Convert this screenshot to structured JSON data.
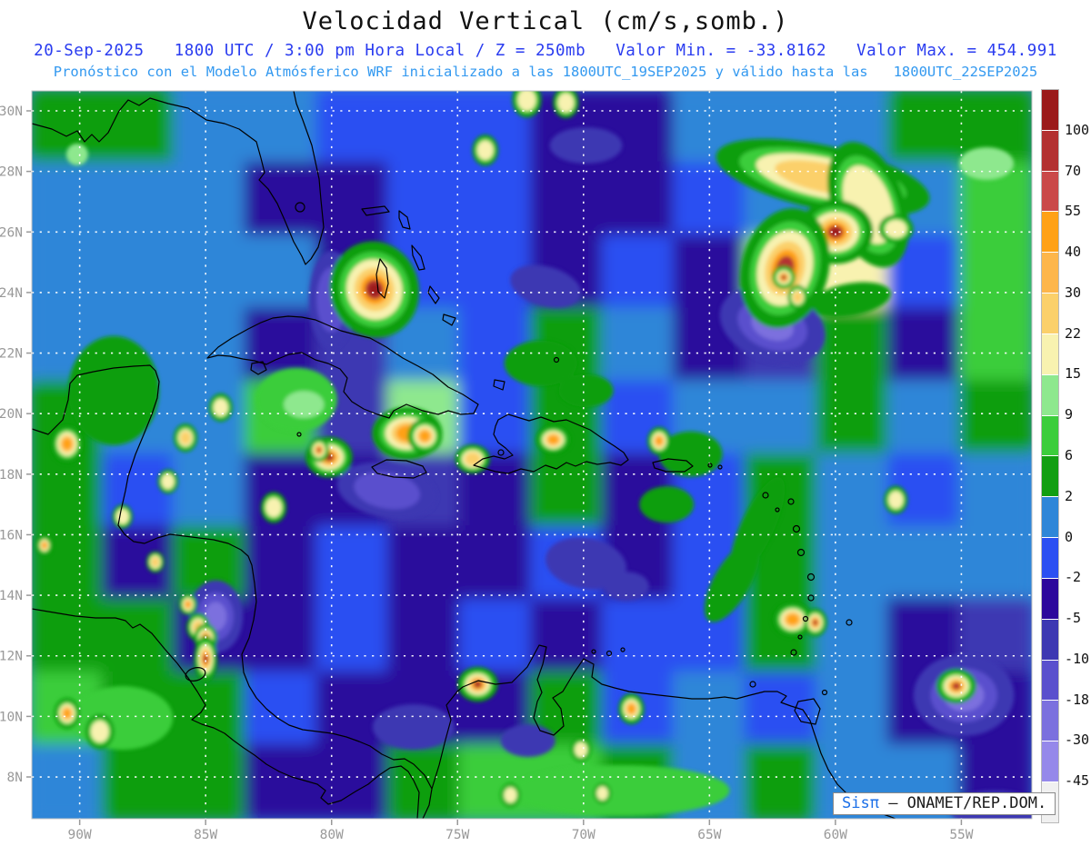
{
  "header": {
    "title": "Velocidad Vertical (cm/s,somb.)",
    "line2": "20-Sep-2025   1800 UTC / 3:00 pm Hora Local / Z = 250mb   Valor Min. = -33.8162   Valor Max. = 454.991",
    "line3": "Pronóstico con el Modelo Atmósferico WRF inicializado a las 1800UTC_19SEP2025 y válido hasta las   1800UTC_22SEP2025"
  },
  "watermark": {
    "brand": "Sisπ",
    "separator": " – ",
    "org": "ONAMET/REP.DOM."
  },
  "axes": {
    "lat_labels": [
      "30N",
      "28N",
      "26N",
      "24N",
      "22N",
      "20N",
      "18N",
      "16N",
      "14N",
      "12N",
      "10N",
      "8N"
    ],
    "lon_labels": [
      "90W",
      "85W",
      "80W",
      "75W",
      "70W",
      "65W",
      "60W",
      "55W"
    ],
    "label_color": "#999999"
  },
  "colorbar": {
    "labels": [
      "100",
      "70",
      "55",
      "40",
      "30",
      "22",
      "15",
      "9",
      "6",
      "2",
      "0",
      "-2",
      "-5",
      "-10",
      "-18",
      "-30",
      "-45"
    ],
    "colors_top_to_bottom": [
      "#9b1a1a",
      "#b33030",
      "#ca4949",
      "#ffa116",
      "#fdb64b",
      "#fbd06a",
      "#f8f2b0",
      "#8ee88e",
      "#3bcd3b",
      "#119e11",
      "#2e86d8",
      "#2b4ff2",
      "#2c079c",
      "#3d38b2",
      "#5a50cd",
      "#7b70de",
      "#9588ea",
      "#f0f0f0"
    ]
  },
  "chart_data": {
    "type": "heatmap",
    "title": "Velocidad Vertical (cm/s,somb.)",
    "units": "cm/s",
    "level": "250mb",
    "valid_time": "20-Sep-2025 1800 UTC / 3:00 pm Hora Local",
    "model": "WRF",
    "initialized": "1800UTC_19SEP2025",
    "valid_until": "1800UTC_22SEP2025",
    "value_min": -33.8162,
    "value_max": 454.991,
    "lon_range": [
      -91.9,
      -52.2
    ],
    "lat_range": [
      6.62,
      30.66
    ],
    "lat_ticks": [
      30,
      28,
      26,
      24,
      22,
      20,
      18,
      16,
      14,
      12,
      10,
      8
    ],
    "lon_ticks": [
      -90,
      -85,
      -80,
      -75,
      -70,
      -65,
      -60,
      -55
    ],
    "levels": [
      -45,
      -30,
      -18,
      -10,
      -5,
      -2,
      0,
      2,
      6,
      9,
      15,
      22,
      30,
      40,
      55,
      70,
      100
    ],
    "level_colors_low_to_high": [
      "#f0f0f0",
      "#9588ea",
      "#7b70de",
      "#5a50cd",
      "#3d38b2",
      "#2c079c",
      "#2b4ff2",
      "#2e86d8",
      "#119e11",
      "#3bcd3b",
      "#8ee88e",
      "#f8f2b0",
      "#fbd06a",
      "#fdb64b",
      "#ffa116",
      "#ca4949",
      "#b33030",
      "#9b1a1a"
    ],
    "grid_note": "coarse 14x10 field of dominant band values (cm/s), west->east, north->south",
    "grid": {
      "cols": 14,
      "rows": 10,
      "values": [
        [
          4,
          4,
          1,
          1,
          -1,
          -1,
          -1,
          -4,
          -4,
          1,
          1,
          1,
          4,
          4
        ],
        [
          1,
          1,
          1,
          -4,
          -4,
          -1,
          -1,
          -4,
          -4,
          -1,
          1,
          -1,
          1,
          7
        ],
        [
          1,
          1,
          1,
          1,
          -4,
          -1,
          -1,
          -4,
          -1,
          -4,
          12,
          18,
          -1,
          7
        ],
        [
          1,
          1,
          1,
          -4,
          -8,
          1,
          -1,
          4,
          1,
          -4,
          -8,
          4,
          -4,
          7
        ],
        [
          4,
          1,
          1,
          7,
          -8,
          12,
          -1,
          4,
          -1,
          1,
          1,
          4,
          1,
          4
        ],
        [
          4,
          -1,
          1,
          -4,
          -4,
          -8,
          -4,
          4,
          -4,
          -1,
          4,
          1,
          -1,
          1
        ],
        [
          4,
          -4,
          4,
          -4,
          -1,
          -4,
          -4,
          -1,
          -4,
          -1,
          4,
          1,
          1,
          1
        ],
        [
          4,
          4,
          -4,
          -4,
          -1,
          -4,
          -1,
          -4,
          -1,
          -1,
          4,
          1,
          -4,
          -8
        ],
        [
          7,
          4,
          4,
          -1,
          -4,
          -4,
          -4,
          4,
          -1,
          1,
          -1,
          1,
          -4,
          -4
        ],
        [
          1,
          4,
          4,
          -4,
          -4,
          4,
          7,
          7,
          4,
          1,
          4,
          1,
          1,
          -4
        ]
      ]
    },
    "features_note": "notable maxima/minima blobs: [lon, lat, rx_deg, ry_deg, peak_value_cms, rotation_deg]",
    "features": [
      [
        -78.3,
        24.1,
        1.1,
        1.0,
        120,
        -15
      ],
      [
        -60.5,
        27.8,
        2.7,
        0.66,
        26,
        12
      ],
      [
        -58.7,
        26.9,
        0.9,
        1.35,
        18,
        -20
      ],
      [
        -60.0,
        26.0,
        0.94,
        0.66,
        120,
        0
      ],
      [
        -62.0,
        24.8,
        1.08,
        1.26,
        80,
        15
      ],
      [
        -62.05,
        24.5,
        0.29,
        0.24,
        120,
        0
      ],
      [
        -57.6,
        26.1,
        0.43,
        0.3,
        18,
        0
      ],
      [
        -61.5,
        23.85,
        0.25,
        0.25,
        26,
        0
      ],
      [
        -77.0,
        19.35,
        0.87,
        0.54,
        45,
        0
      ],
      [
        -76.3,
        19.26,
        0.43,
        0.36,
        45,
        0
      ],
      [
        -80.1,
        18.56,
        0.58,
        0.42,
        120,
        0
      ],
      [
        -80.5,
        18.8,
        0.25,
        0.25,
        80,
        0
      ],
      [
        -71.2,
        19.14,
        0.43,
        0.3,
        45,
        0
      ],
      [
        -67.0,
        19.1,
        0.29,
        0.29,
        45,
        0
      ],
      [
        -74.4,
        18.5,
        0.43,
        0.3,
        26,
        0
      ],
      [
        -90.5,
        19.0,
        0.4,
        0.4,
        45,
        0
      ],
      [
        -85.8,
        19.2,
        0.29,
        0.29,
        26,
        0
      ],
      [
        -86.5,
        17.76,
        0.25,
        0.25,
        18,
        0
      ],
      [
        -84.4,
        20.2,
        0.29,
        0.29,
        18,
        0
      ],
      [
        -82.3,
        16.9,
        0.32,
        0.32,
        18,
        0
      ],
      [
        -88.3,
        16.6,
        0.25,
        0.25,
        18,
        0
      ],
      [
        -85.7,
        13.7,
        0.22,
        0.22,
        45,
        0
      ],
      [
        -85.3,
        12.95,
        0.29,
        0.29,
        26,
        0
      ],
      [
        -85.0,
        12.6,
        0.29,
        0.29,
        120,
        0
      ],
      [
        -85.0,
        11.9,
        0.29,
        0.48,
        120,
        0
      ],
      [
        -87.0,
        15.1,
        0.22,
        0.22,
        26,
        0
      ],
      [
        -91.4,
        15.65,
        0.2,
        0.2,
        45,
        0
      ],
      [
        -90.5,
        10.1,
        0.32,
        0.32,
        45,
        0
      ],
      [
        -74.2,
        11.06,
        0.5,
        0.36,
        120,
        0
      ],
      [
        -68.1,
        10.25,
        0.32,
        0.32,
        45,
        0
      ],
      [
        -61.7,
        13.2,
        0.5,
        0.36,
        45,
        0
      ],
      [
        -60.8,
        13.1,
        0.29,
        0.29,
        80,
        0
      ],
      [
        -55.2,
        11.0,
        0.5,
        0.36,
        80,
        0
      ],
      [
        -72.25,
        30.36,
        0.36,
        0.36,
        18,
        0
      ],
      [
        -70.7,
        30.27,
        0.32,
        0.32,
        18,
        0
      ],
      [
        -73.9,
        28.7,
        0.32,
        0.32,
        18,
        0
      ],
      [
        -57.6,
        17.15,
        0.29,
        0.29,
        18,
        0
      ],
      [
        -72.9,
        7.4,
        0.25,
        0.25,
        18,
        0
      ],
      [
        -69.25,
        7.46,
        0.22,
        0.22,
        18,
        0
      ],
      [
        -70.1,
        8.9,
        0.25,
        0.25,
        18,
        0
      ],
      [
        -54.0,
        28.26,
        1.08,
        0.54,
        9,
        0
      ],
      [
        -65.75,
        18.66,
        1.26,
        0.75,
        4,
        0
      ],
      [
        -66.7,
        17.0,
        1.08,
        0.6,
        4,
        0
      ],
      [
        -63.1,
        16.25,
        0.65,
        1.8,
        4,
        25
      ],
      [
        -64.1,
        14.45,
        0.72,
        1.5,
        4,
        30
      ],
      [
        -71.7,
        21.66,
        1.44,
        0.75,
        4,
        0
      ],
      [
        -69.9,
        20.76,
        1.08,
        0.54,
        4,
        0
      ],
      [
        -81.4,
        20.46,
        1.62,
        1.05,
        7,
        0
      ],
      [
        -81.1,
        20.3,
        0.8,
        0.45,
        12,
        0
      ],
      [
        -59.4,
        23.76,
        1.62,
        0.54,
        4,
        -10
      ],
      [
        -90.1,
        28.56,
        0.43,
        0.36,
        9,
        0
      ],
      [
        -88.65,
        20.76,
        1.8,
        1.8,
        4,
        0
      ],
      [
        -88.3,
        9.95,
        2.0,
        1.05,
        7,
        0
      ],
      [
        -89.2,
        9.5,
        0.36,
        0.36,
        18,
        0
      ],
      [
        -68.5,
        7.55,
        4.3,
        0.84,
        7,
        0
      ],
      [
        -77.8,
        17.46,
        2.0,
        0.9,
        -14,
        10
      ],
      [
        -80.0,
        23.76,
        0.9,
        1.62,
        -14,
        0
      ],
      [
        -62.5,
        22.92,
        2.16,
        1.2,
        -25,
        20
      ],
      [
        -84.6,
        13.3,
        1.08,
        1.2,
        -25,
        0
      ],
      [
        -54.9,
        10.7,
        2.0,
        1.35,
        -25,
        0
      ],
      [
        -69.9,
        15.05,
        1.62,
        0.84,
        -8,
        10
      ],
      [
        -68.3,
        14.3,
        0.9,
        0.48,
        -8,
        0
      ],
      [
        -71.5,
        24.2,
        1.44,
        0.66,
        -8,
        15
      ],
      [
        -69.9,
        28.86,
        1.44,
        0.6,
        -8,
        0
      ],
      [
        -76.75,
        9.65,
        1.62,
        0.75,
        -8,
        0
      ],
      [
        -72.2,
        9.2,
        1.08,
        0.54,
        -8,
        0
      ],
      [
        -53.7,
        6.95,
        1.8,
        0.6,
        -8,
        0
      ]
    ]
  }
}
